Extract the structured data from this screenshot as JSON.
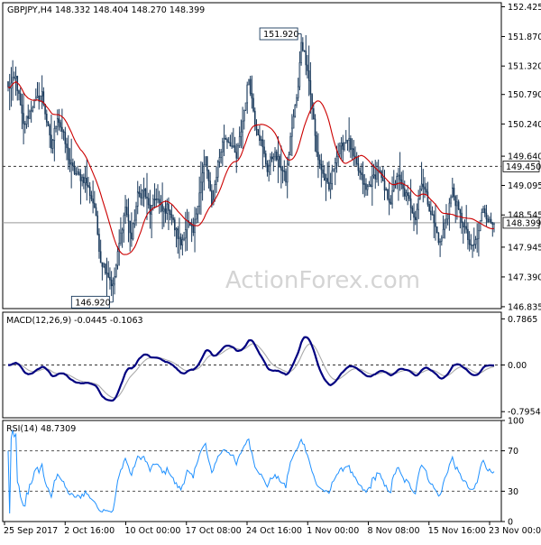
{
  "chart_data": [
    {
      "type": "candlestick",
      "title": "GBPJPY,H4",
      "ohlc_label": "148.332 148.404 148.270 148.399",
      "watermark": "ActionForex.com",
      "ylim": [
        146.8,
        152.5
      ],
      "y_ticks": [
        "152.425",
        "151.870",
        "151.320",
        "150.790",
        "150.240",
        "149.640",
        "149.095",
        "148.545",
        "147.945",
        "147.390",
        "146.835"
      ],
      "x_ticks": [
        "25 Sep 2017",
        "2 Oct 16:00",
        "10 Oct 00:00",
        "17 Oct 08:00",
        "24 Oct 16:00",
        "1 Nov 00:00",
        "8 Nov 08:00",
        "15 Nov 16:00",
        "23 Nov 00:00"
      ],
      "annotations": [
        {
          "label": "151.920",
          "value": 151.92,
          "bar": 190
        },
        {
          "label": "146.920",
          "value": 146.92,
          "bar": 68
        }
      ],
      "levels": [
        {
          "value": 149.45,
          "label": "149.450",
          "style": "dashed"
        },
        {
          "value": 148.399,
          "label": "148.399",
          "style": "solid"
        }
      ],
      "close_anchors": [
        [
          0,
          150.9
        ],
        [
          5,
          151.1
        ],
        [
          10,
          150.2
        ],
        [
          16,
          150.6
        ],
        [
          22,
          150.8
        ],
        [
          28,
          149.8
        ],
        [
          32,
          150.4
        ],
        [
          36,
          150.0
        ],
        [
          40,
          149.5
        ],
        [
          44,
          149.3
        ],
        [
          50,
          149.2
        ],
        [
          56,
          148.7
        ],
        [
          60,
          147.7
        ],
        [
          64,
          147.5
        ],
        [
          68,
          147.2
        ],
        [
          72,
          148.0
        ],
        [
          76,
          148.7
        ],
        [
          80,
          148.1
        ],
        [
          84,
          148.9
        ],
        [
          88,
          149.0
        ],
        [
          92,
          148.6
        ],
        [
          96,
          148.9
        ],
        [
          100,
          148.6
        ],
        [
          104,
          148.7
        ],
        [
          108,
          148.3
        ],
        [
          112,
          148.0
        ],
        [
          116,
          148.4
        ],
        [
          120,
          148.2
        ],
        [
          124,
          149.0
        ],
        [
          128,
          149.6
        ],
        [
          132,
          148.7
        ],
        [
          136,
          149.5
        ],
        [
          140,
          150.0
        ],
        [
          144,
          149.9
        ],
        [
          148,
          149.6
        ],
        [
          152,
          150.3
        ],
        [
          156,
          151.1
        ],
        [
          160,
          150.3
        ],
        [
          164,
          149.9
        ],
        [
          168,
          149.4
        ],
        [
          172,
          149.7
        ],
        [
          176,
          149.5
        ],
        [
          180,
          149.2
        ],
        [
          184,
          150.2
        ],
        [
          188,
          150.9
        ],
        [
          190,
          151.8
        ],
        [
          194,
          151.3
        ],
        [
          198,
          150.3
        ],
        [
          200,
          149.7
        ],
        [
          204,
          149.3
        ],
        [
          208,
          149.0
        ],
        [
          212,
          149.6
        ],
        [
          216,
          149.8
        ],
        [
          220,
          150.0
        ],
        [
          224,
          149.6
        ],
        [
          228,
          149.3
        ],
        [
          232,
          149.0
        ],
        [
          236,
          149.2
        ],
        [
          240,
          149.4
        ],
        [
          244,
          149.0
        ],
        [
          248,
          148.8
        ],
        [
          252,
          149.3
        ],
        [
          256,
          149.0
        ],
        [
          260,
          148.8
        ],
        [
          264,
          148.5
        ],
        [
          268,
          149.2
        ],
        [
          272,
          148.8
        ],
        [
          276,
          148.4
        ],
        [
          280,
          148.0
        ],
        [
          284,
          148.5
        ],
        [
          288,
          149.0
        ],
        [
          292,
          148.6
        ],
        [
          296,
          148.3
        ],
        [
          300,
          147.9
        ],
        [
          304,
          148.1
        ],
        [
          308,
          148.7
        ],
        [
          312,
          148.4
        ],
        [
          315,
          148.399
        ]
      ],
      "ma": {
        "period": 20,
        "color": "#cc0000"
      },
      "price_color": "#1a3a5c",
      "panels": [
        {
          "name": "MACD",
          "label": "MACD(12,26,9) -0.0445 -0.1063",
          "y_ticks": [
            "0.7865",
            "0.00",
            "-0.7954"
          ],
          "ylim": [
            -0.9,
            0.9
          ],
          "main_color": "#000080",
          "signal_color": "#aaaaaa",
          "zero_level": 0
        },
        {
          "name": "RSI",
          "label": "RSI(14) 48.7309",
          "y_ticks": [
            "100",
            "70",
            "30",
            "0"
          ],
          "ylim": [
            0,
            100
          ],
          "levels": [
            70,
            30
          ],
          "line_color": "#1e90ff"
        }
      ]
    }
  ]
}
